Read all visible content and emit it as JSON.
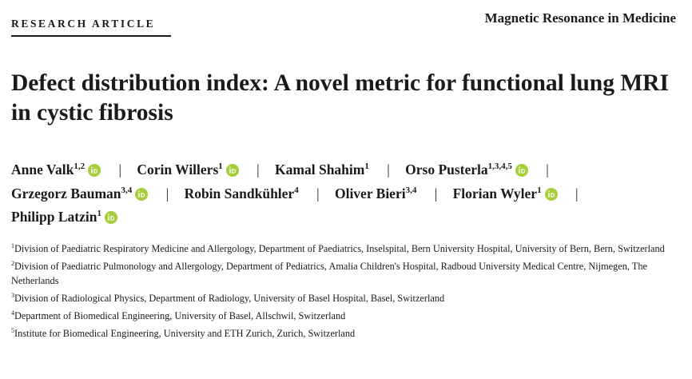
{
  "header": {
    "label": "RESEARCH ARTICLE",
    "journal": "Magnetic Resonance in Medicine"
  },
  "title": "Defect distribution index: A novel metric for functional lung MRI in cystic fibrosis",
  "author_separator": "|",
  "authors": [
    {
      "name": "Anne Valk",
      "affiliations": "1,2",
      "orcid": true
    },
    {
      "name": "Corin Willers",
      "affiliations": "1",
      "orcid": true
    },
    {
      "name": "Kamal Shahim",
      "affiliations": "1",
      "orcid": false
    },
    {
      "name": "Orso Pusterla",
      "affiliations": "1,3,4,5",
      "orcid": true
    },
    {
      "name": "Grzegorz Bauman",
      "affiliations": "3,4",
      "orcid": true
    },
    {
      "name": "Robin Sandkühler",
      "affiliations": "4",
      "orcid": false
    },
    {
      "name": "Oliver Bieri",
      "affiliations": "3,4",
      "orcid": false
    },
    {
      "name": "Florian Wyler",
      "affiliations": "1",
      "orcid": true
    },
    {
      "name": "Philipp Latzin",
      "affiliations": "1",
      "orcid": true
    }
  ],
  "affiliations": [
    {
      "number": "1",
      "text": "Division of Paediatric Respiratory Medicine and Allergology, Department of Paediatrics, Inselspital, Bern University Hospital, University of Bern, Bern, Switzerland"
    },
    {
      "number": "2",
      "text": "Division of Paediatric Pulmonology and Allergology, Department of Pediatrics, Amalia Children's Hospital, Radboud University Medical Centre, Nijmegen, The Netherlands"
    },
    {
      "number": "3",
      "text": "Division of Radiological Physics, Department of Radiology, University of Basel Hospital, Basel, Switzerland"
    },
    {
      "number": "4",
      "text": "Department of Biomedical Engineering, University of Basel, Allschwil, Switzerland"
    },
    {
      "number": "5",
      "text": "Institute for Biomedical Engineering, University and ETH Zurich, Zurich, Switzerland"
    }
  ]
}
